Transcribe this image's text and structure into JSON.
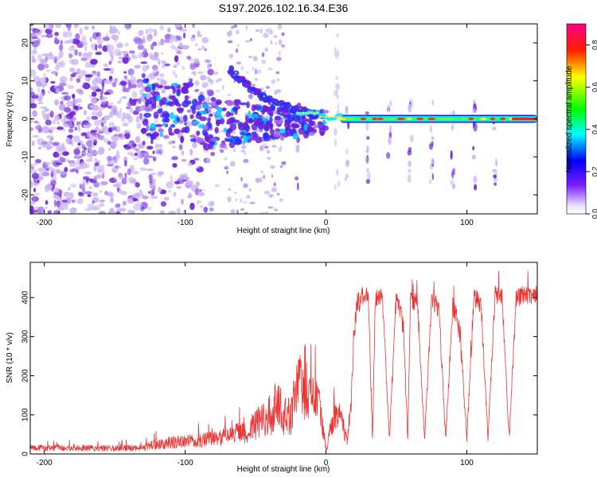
{
  "title": "S197.2026.102.16.34.E36",
  "colors": {
    "snr_line": "#ee3333",
    "spec_sparse": "#c9b3f2",
    "spec_dense": "#6a1fd8",
    "colorbar_stops": [
      "#ffffff",
      "#6a00ff",
      "#0000ff",
      "#00ffff",
      "#00ff00",
      "#ffff00",
      "#ff0000",
      "#ff00aa"
    ]
  },
  "chart_data": [
    {
      "type": "heatmap",
      "name": "spectrogram",
      "xlabel": "Height of straight line (km)",
      "ylabel": "Frequency (Hz)",
      "xlim": [
        -210,
        150
      ],
      "ylim": [
        -25,
        25
      ],
      "x_ticks": [
        -200,
        -100,
        0,
        100
      ],
      "x_tick_labels": [
        "-200",
        "-100",
        "0",
        "100"
      ],
      "y_ticks": [
        -20,
        -10,
        0,
        10,
        20
      ],
      "y_tick_labels": [
        "-20",
        "-10",
        "0",
        "10",
        "20"
      ],
      "colorbar": {
        "label": "Normalized spectral amplitude",
        "range": [
          0,
          0.9
        ],
        "ticks": [
          0.0,
          0.2,
          0.4,
          0.6,
          0.8
        ],
        "tick_labels": [
          "0.0",
          "0.2",
          "0.4",
          "0.6",
          "0.8"
        ]
      },
      "features": {
        "noise_region_x": [
          -210,
          -120
        ],
        "emergence_start_x": -130,
        "steady_tone_freq": 0,
        "steady_tone_start_x": 10,
        "diagonal_branch": [
          [
            -68,
            13
          ],
          [
            -60,
            10
          ],
          [
            -50,
            7
          ],
          [
            -40,
            5
          ],
          [
            -28,
            3
          ],
          [
            -18,
            2
          ],
          [
            -8,
            1
          ]
        ],
        "vertical_streaks_x": [
          -20,
          15,
          30,
          45,
          60,
          75,
          90,
          105,
          120
        ]
      }
    },
    {
      "type": "line",
      "name": "snr",
      "xlabel": "Height of straight line (km)",
      "ylabel": "SNR (10 * v/v)",
      "xlim": [
        -210,
        150
      ],
      "ylim": [
        0,
        490
      ],
      "x_ticks": [
        -200,
        -100,
        0,
        100
      ],
      "x_tick_labels": [
        "-200",
        "-100",
        "0",
        "100"
      ],
      "y_ticks": [
        0,
        100,
        200,
        300,
        400
      ],
      "y_tick_labels": [
        "0",
        "100",
        "200",
        "300",
        "400"
      ],
      "series": [
        {
          "name": "SNR",
          "x": [
            -210,
            -180,
            -150,
            -130,
            -120,
            -110,
            -100,
            -90,
            -80,
            -70,
            -60,
            -50,
            -40,
            -35,
            -30,
            -25,
            -22,
            -18,
            -14,
            -10,
            -5,
            0,
            5,
            10,
            15,
            18,
            20,
            22,
            25,
            28,
            30,
            33,
            35,
            40,
            45,
            50,
            55,
            58,
            60,
            65,
            70,
            75,
            80,
            85,
            90,
            95,
            100,
            105,
            110,
            115,
            120,
            125,
            130,
            135,
            140,
            145,
            150
          ],
          "values": [
            15,
            15,
            15,
            15,
            25,
            30,
            32,
            35,
            38,
            45,
            55,
            75,
            95,
            130,
            100,
            90,
            160,
            190,
            120,
            160,
            130,
            10,
            90,
            100,
            30,
            150,
            320,
            380,
            400,
            410,
            395,
            40,
            400,
            405,
            40,
            410,
            320,
            40,
            400,
            385,
            30,
            400,
            370,
            40,
            380,
            315,
            40,
            400,
            385,
            40,
            410,
            405,
            40,
            400,
            405,
            410,
            405
          ],
          "noise_amplitude": [
            8,
            8,
            8,
            8,
            14,
            16,
            16,
            18,
            20,
            24,
            30,
            40,
            55,
            60,
            55,
            50,
            65,
            70,
            60,
            55,
            50,
            6,
            35,
            35,
            15,
            35,
            40,
            30,
            25,
            25,
            25,
            12,
            25,
            25,
            12,
            25,
            30,
            12,
            25,
            25,
            12,
            25,
            25,
            12,
            25,
            30,
            12,
            25,
            25,
            12,
            25,
            25,
            12,
            25,
            25,
            25,
            25
          ]
        }
      ]
    }
  ]
}
